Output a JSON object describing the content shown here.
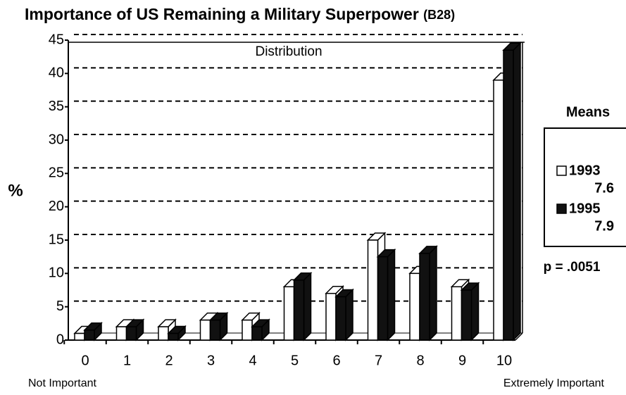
{
  "chart_data": {
    "type": "bar3d",
    "title": "Importance of US Remaining a Military Superpower",
    "title_code": "(B28)",
    "subtitle": "Distribution",
    "y_label": "%",
    "x_label_left": "Not Important",
    "x_label_right": "Extremely Important",
    "legend_title": "Means",
    "annotation": "p = .0051",
    "categories": [
      "0",
      "1",
      "2",
      "3",
      "4",
      "5",
      "6",
      "7",
      "8",
      "9",
      "10"
    ],
    "series": [
      {
        "name": "1993",
        "color": "#ffffff",
        "mean": 7.6,
        "values": [
          1,
          2,
          2,
          3,
          3,
          8,
          7,
          15,
          10,
          8,
          39
        ]
      },
      {
        "name": "1995",
        "color": "#111111",
        "mean": 7.9,
        "values": [
          1.5,
          2,
          1,
          3,
          2,
          9,
          6.5,
          12.5,
          13,
          7.5,
          43.5
        ]
      }
    ],
    "ylim": [
      0,
      45
    ],
    "yticks": [
      0,
      5,
      10,
      15,
      20,
      25,
      30,
      35,
      40,
      45
    ],
    "grid": true
  }
}
